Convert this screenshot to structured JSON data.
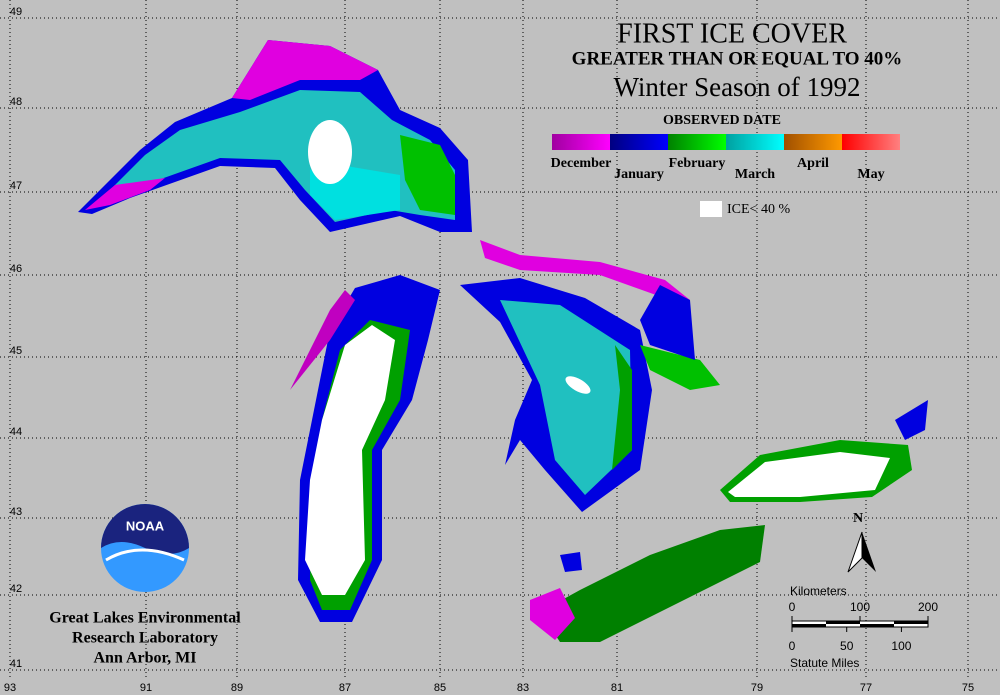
{
  "title": "FIRST ICE COVER",
  "subtitle": "GREATER THAN OR EQUAL TO 40%",
  "season": "Winter Season of 1992",
  "legend": {
    "title": "OBSERVED DATE",
    "items": [
      {
        "label": "December",
        "colors": [
          "#a000a0",
          "#ff00ff"
        ]
      },
      {
        "label": "January",
        "colors": [
          "#000080",
          "#0000ff"
        ]
      },
      {
        "label": "February",
        "colors": [
          "#008000",
          "#00ff00"
        ]
      },
      {
        "label": "March",
        "colors": [
          "#00a0a0",
          "#00ffff"
        ]
      },
      {
        "label": "April",
        "colors": [
          "#a05000",
          "#ff9900"
        ]
      },
      {
        "label": "May",
        "colors": [
          "#ff0000",
          "#ff8080"
        ]
      }
    ],
    "ice_label": "ICE< 40 %"
  },
  "grid": {
    "longitudes": [
      93,
      91,
      89,
      87,
      85,
      83,
      81,
      79,
      77,
      75
    ],
    "latitudes": [
      49,
      48,
      47,
      46,
      45,
      44,
      43,
      42,
      41
    ]
  },
  "north_label": "N",
  "scale": {
    "km_title": "Kilometers",
    "km_ticks": [
      0,
      100,
      200
    ],
    "mi_ticks": [
      0,
      50,
      100
    ],
    "mi_title": "Statute Miles"
  },
  "logo": "NOAA",
  "credit": [
    "Great Lakes Environmental",
    "Research Laboratory",
    "Ann Arbor, MI"
  ]
}
